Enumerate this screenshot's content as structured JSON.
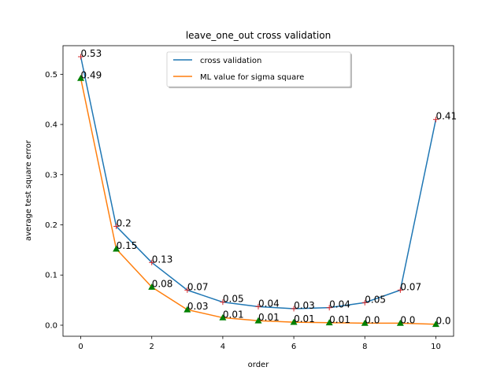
{
  "chart_data": {
    "type": "line",
    "title": "leave_one_out cross validation",
    "xlabel": "order",
    "ylabel": "average test square error",
    "xlim": [
      -0.5,
      10.5
    ],
    "ylim": [
      -0.022,
      0.557
    ],
    "xticks": [
      0,
      2,
      4,
      6,
      8,
      10
    ],
    "yticks": [
      0.0,
      0.1,
      0.2,
      0.3,
      0.4,
      0.5
    ],
    "ytick_labels": [
      "0.0",
      "0.1",
      "0.2",
      "0.3",
      "0.4",
      "0.5"
    ],
    "grid": false,
    "legend_position": "top-center",
    "x": [
      0,
      1,
      2,
      3,
      4,
      5,
      6,
      7,
      8,
      9,
      10
    ],
    "series": [
      {
        "name": "cross validation",
        "color": "#1f77b4",
        "marker": "plus",
        "marker_color": "#d62728",
        "values": [
          0.535,
          0.197,
          0.125,
          0.07,
          0.046,
          0.037,
          0.033,
          0.035,
          0.045,
          0.07,
          0.41
        ],
        "labels": [
          "0.53",
          "0.2",
          "0.13",
          "0.07",
          "0.05",
          "0.04",
          "0.03",
          "0.04",
          "0.05",
          "0.07",
          "0.41"
        ]
      },
      {
        "name": "ML value for sigma square",
        "color": "#ff7f0e",
        "marker": "triangle",
        "marker_color": "#008000",
        "values": [
          0.492,
          0.152,
          0.076,
          0.031,
          0.015,
          0.009,
          0.006,
          0.005,
          0.004,
          0.004,
          0.002
        ],
        "labels": [
          "0.49",
          "0.15",
          "0.08",
          "0.03",
          "0.01",
          "0.01",
          "0.01",
          "0.01",
          "0.0",
          "0.0",
          "0.0"
        ]
      }
    ]
  }
}
